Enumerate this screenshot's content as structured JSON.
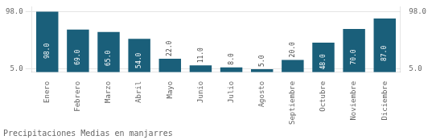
{
  "chart_data": {
    "type": "bar",
    "title": "Precipitaciones Medias en manjarres",
    "categories": [
      "Enero",
      "Febrero",
      "Marzo",
      "Abril",
      "Mayo",
      "Junio",
      "Julio",
      "Agosto",
      "Septiembre",
      "Octubre",
      "Noviembre",
      "Diciembre"
    ],
    "values": [
      98.0,
      69.0,
      65.0,
      54.0,
      22.0,
      11.0,
      8.0,
      5.0,
      20.0,
      48.0,
      70.0,
      87.0
    ],
    "value_labels": [
      "98.0",
      "69.0",
      "65.0",
      "54.0",
      "22.0",
      "11.0",
      "8.0",
      "5.0",
      "20.0",
      "48.0",
      "70.0",
      "87.0"
    ],
    "color": "#1a5f7a",
    "ylim": [
      0,
      105.84
    ],
    "yticks": [
      {
        "value": 5,
        "label": "5.0"
      },
      {
        "value": 98,
        "label": "98.0"
      }
    ],
    "y2lim": [
      0,
      105.84
    ],
    "y2ticks": [
      {
        "value": 5,
        "label": "5.0"
      },
      {
        "value": 98,
        "label": "98.0"
      }
    ],
    "grid": true,
    "data_labels": true
  }
}
